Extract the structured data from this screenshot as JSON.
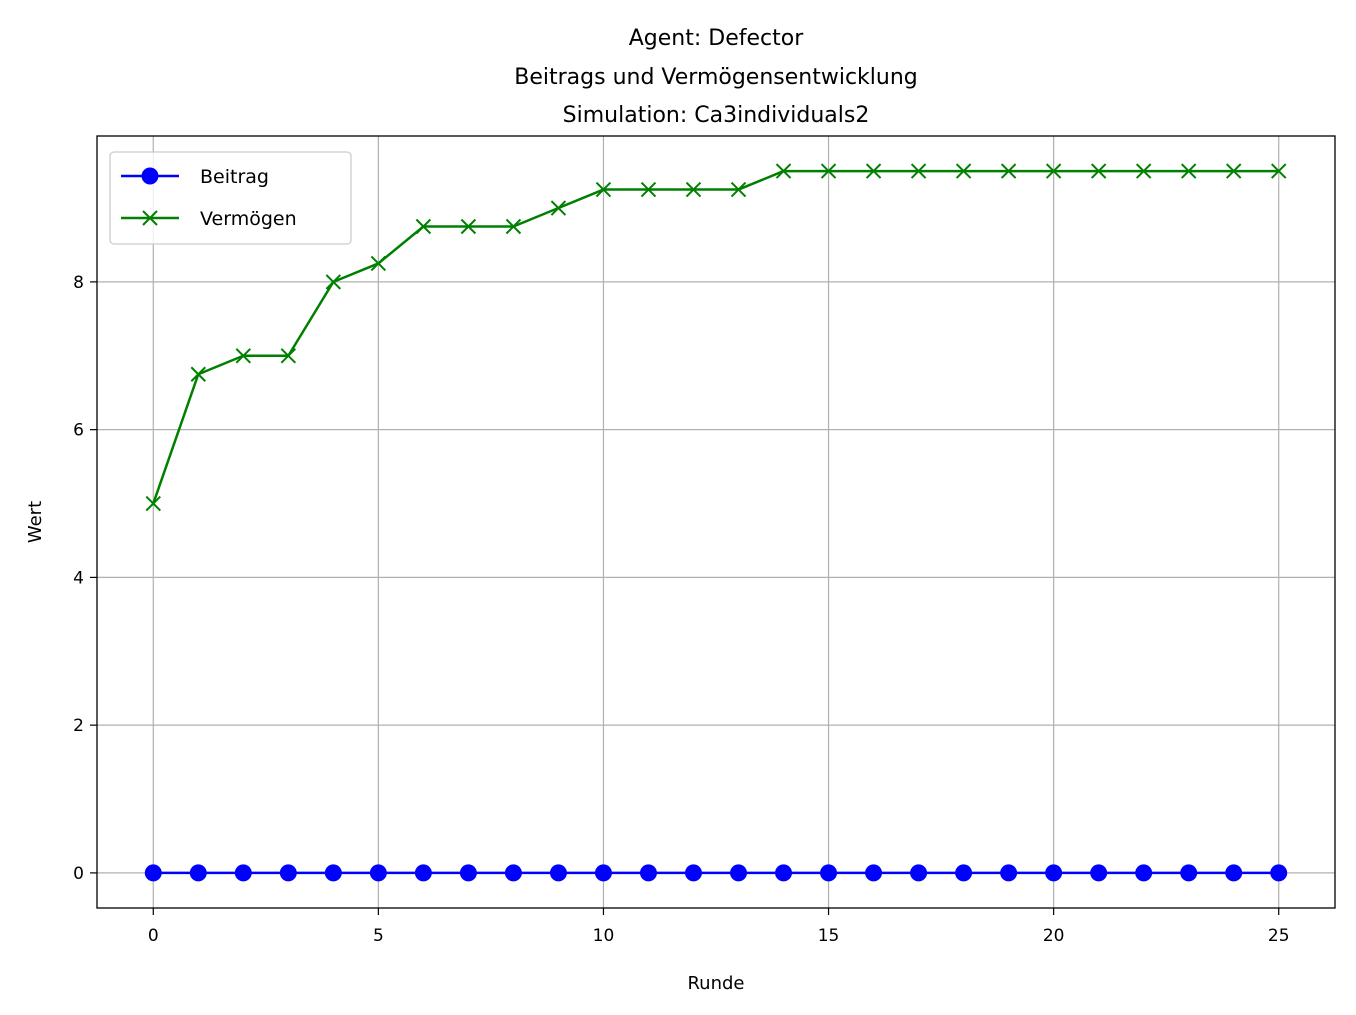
{
  "chart_data": {
    "type": "line",
    "title_lines": [
      "Agent: Defector",
      "Beitrags und Vermögensentwicklung",
      "Simulation: Ca3individuals2"
    ],
    "xlabel": "Runde",
    "ylabel": "Wert",
    "xlim": [
      -1.25,
      26.25
    ],
    "ylim": [
      -0.475,
      9.975
    ],
    "xticks": [
      0,
      5,
      10,
      15,
      20,
      25
    ],
    "yticks": [
      0,
      2,
      4,
      6,
      8
    ],
    "grid": true,
    "legend_position": "top-left",
    "x": [
      0,
      1,
      2,
      3,
      4,
      5,
      6,
      7,
      8,
      9,
      10,
      11,
      12,
      13,
      14,
      15,
      16,
      17,
      18,
      19,
      20,
      21,
      22,
      23,
      24,
      25
    ],
    "series": [
      {
        "name": "Beitrag",
        "color": "#0000ff",
        "marker": "circle",
        "values": [
          0,
          0,
          0,
          0,
          0,
          0,
          0,
          0,
          0,
          0,
          0,
          0,
          0,
          0,
          0,
          0,
          0,
          0,
          0,
          0,
          0,
          0,
          0,
          0,
          0,
          0
        ]
      },
      {
        "name": "Vermögen",
        "color": "#008000",
        "marker": "x",
        "values": [
          5,
          6.75,
          7,
          7,
          8,
          8.25,
          8.75,
          8.75,
          8.75,
          9,
          9.25,
          9.25,
          9.25,
          9.25,
          9.5,
          9.5,
          9.5,
          9.5,
          9.5,
          9.5,
          9.5,
          9.5,
          9.5,
          9.5,
          9.5,
          9.5
        ]
      }
    ]
  }
}
